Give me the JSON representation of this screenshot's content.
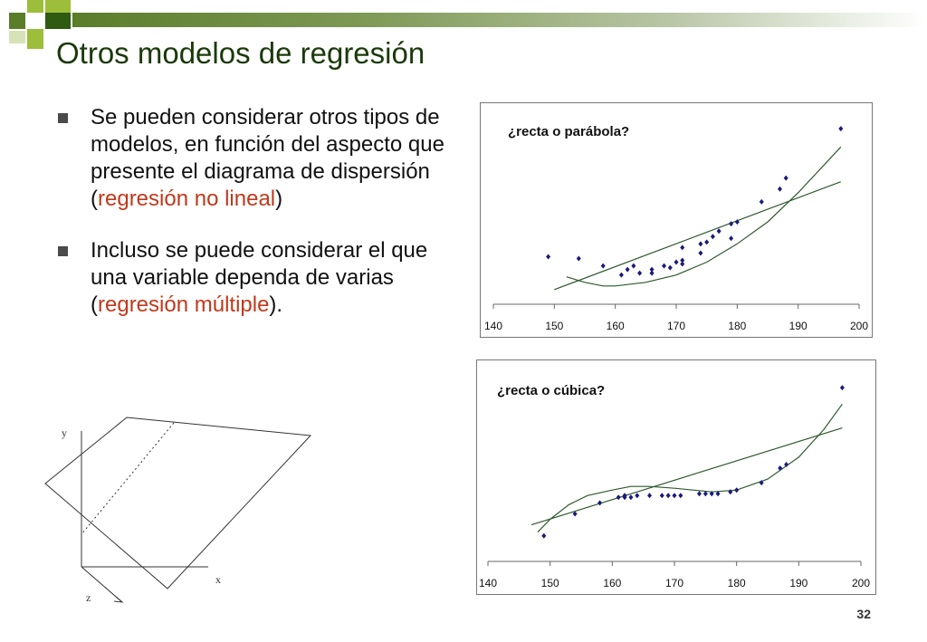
{
  "slide": {
    "title": "Otros modelos de regresión",
    "page_number": "32",
    "colors": {
      "title": "#1a3a0a",
      "highlight": "#c0391b",
      "accent_green": "#6b8e23"
    }
  },
  "bullets": [
    {
      "text_before": "Se pueden considerar otros tipos de modelos, en función del aspecto que presente el diagrama de dispersión (",
      "highlight": "regresión no lineal",
      "text_after": ")"
    },
    {
      "text_before": "Incluso se puede considerar el que una variable dependa de varias (",
      "highlight": "regresión múltiple",
      "text_after": ")."
    }
  ],
  "diagram": {
    "axis_labels": {
      "y": "y",
      "x": "x",
      "z": "z"
    }
  },
  "chart_data": [
    {
      "type": "scatter",
      "title": "¿recta o parábola?",
      "xlim": [
        140,
        200
      ],
      "xticks": [
        "140",
        "150",
        "160",
        "170",
        "180",
        "190",
        "200"
      ],
      "ylim": [
        0,
        100
      ],
      "points": [
        [
          149,
          26
        ],
        [
          154,
          25
        ],
        [
          158,
          21
        ],
        [
          161,
          16
        ],
        [
          162,
          19
        ],
        [
          163,
          21
        ],
        [
          164,
          17
        ],
        [
          166,
          19
        ],
        [
          166,
          17
        ],
        [
          168,
          21
        ],
        [
          169,
          20
        ],
        [
          170,
          23
        ],
        [
          171,
          24
        ],
        [
          171,
          22
        ],
        [
          171,
          31
        ],
        [
          174,
          28
        ],
        [
          174,
          33
        ],
        [
          175,
          34
        ],
        [
          176,
          37
        ],
        [
          177,
          40
        ],
        [
          179,
          36
        ],
        [
          179,
          44
        ],
        [
          180,
          45
        ],
        [
          184,
          56
        ],
        [
          187,
          63
        ],
        [
          188,
          69
        ],
        [
          197,
          96
        ]
      ],
      "fits": [
        {
          "kind": "linear",
          "line": [
            [
              150,
              8
            ],
            [
              197,
              67
            ]
          ]
        },
        {
          "kind": "quadratic",
          "curve": [
            [
              152,
              15
            ],
            [
              155,
              12
            ],
            [
              158,
              10
            ],
            [
              160,
              10
            ],
            [
              165,
              12
            ],
            [
              170,
              16
            ],
            [
              175,
              23
            ],
            [
              180,
              33
            ],
            [
              185,
              45
            ],
            [
              190,
              61
            ],
            [
              197,
              86
            ]
          ]
        }
      ]
    },
    {
      "type": "scatter",
      "title": "¿recta o cúbica?",
      "xlim": [
        140,
        200
      ],
      "xticks": [
        "140",
        "150",
        "160",
        "170",
        "180",
        "190",
        "200"
      ],
      "ylim": [
        0,
        100
      ],
      "points": [
        [
          149,
          14
        ],
        [
          154,
          26
        ],
        [
          158,
          32
        ],
        [
          161,
          35
        ],
        [
          162,
          36
        ],
        [
          162,
          35
        ],
        [
          163,
          35
        ],
        [
          164,
          36
        ],
        [
          166,
          36
        ],
        [
          168,
          36
        ],
        [
          169,
          36
        ],
        [
          170,
          36
        ],
        [
          171,
          36
        ],
        [
          174,
          37
        ],
        [
          175,
          37
        ],
        [
          176,
          37
        ],
        [
          177,
          37
        ],
        [
          179,
          38
        ],
        [
          180,
          39
        ],
        [
          184,
          43
        ],
        [
          187,
          51
        ],
        [
          188,
          53
        ],
        [
          197,
          95
        ]
      ],
      "fits": [
        {
          "kind": "linear",
          "line": [
            [
              147,
              20
            ],
            [
              197,
              73
            ]
          ]
        },
        {
          "kind": "cubic",
          "curve": [
            [
              148,
              16
            ],
            [
              150,
              23
            ],
            [
              153,
              31
            ],
            [
              156,
              36
            ],
            [
              160,
              39
            ],
            [
              163,
              41
            ],
            [
              166,
              41
            ],
            [
              170,
              40
            ],
            [
              173,
              39
            ],
            [
              176,
              38
            ],
            [
              180,
              39
            ],
            [
              185,
              45
            ],
            [
              190,
              57
            ],
            [
              194,
              72
            ],
            [
              197,
              86
            ]
          ]
        }
      ]
    }
  ]
}
